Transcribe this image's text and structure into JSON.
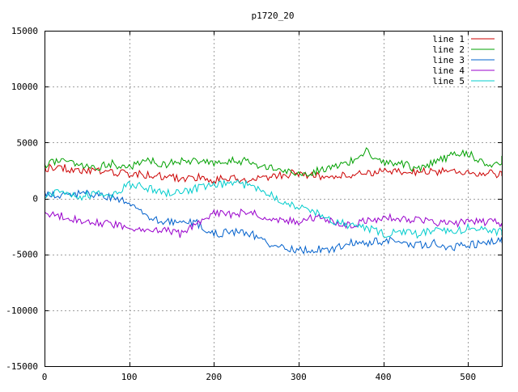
{
  "chart_data": {
    "type": "line",
    "title": "p1720_20",
    "xlabel": "",
    "ylabel": "",
    "xlim": [
      0,
      540
    ],
    "ylim": [
      -15000,
      15000
    ],
    "x_ticks": [
      0,
      100,
      200,
      300,
      400,
      500
    ],
    "y_ticks": [
      -15000,
      -10000,
      -5000,
      0,
      5000,
      10000,
      15000
    ],
    "x_tick_labels": [
      "0",
      "100",
      "200",
      "300",
      "400",
      "500"
    ],
    "y_tick_labels": [
      "-15000",
      "-10000",
      "-5000",
      "0",
      "5000",
      "10000",
      "15000"
    ],
    "grid": true,
    "legend_position": "top-right",
    "x_step": 20,
    "series": [
      {
        "name": "line 1",
        "color": "#cc0000",
        "values": [
          2700,
          2800,
          2500,
          2400,
          2300,
          2200,
          2100,
          2000,
          1800,
          1900,
          1700,
          1800,
          1700,
          1900,
          2100,
          2300,
          2000,
          1900,
          2100,
          2300,
          2400,
          2300,
          2400,
          2400,
          2500,
          2300,
          2200,
          2200,
          2000
        ]
      },
      {
        "name": "line 2",
        "color": "#00a000",
        "values": [
          3000,
          3400,
          3000,
          2800,
          3100,
          2700,
          3600,
          3000,
          3300,
          3400,
          3000,
          3400,
          3300,
          2800,
          2500,
          2200,
          2400,
          2900,
          3200,
          4200,
          3300,
          3200,
          2600,
          3200,
          3800,
          4100,
          3000,
          3200,
          3800
        ]
      },
      {
        "name": "line 3",
        "color": "#0060cc",
        "values": [
          400,
          300,
          400,
          400,
          0,
          -400,
          -1700,
          -2100,
          -2100,
          -2200,
          -3200,
          -3000,
          -3000,
          -3900,
          -4300,
          -4700,
          -4500,
          -4600,
          -4000,
          -4000,
          -3800,
          -3800,
          -4200,
          -4000,
          -4400,
          -4200,
          -4000,
          -3800,
          -4000
        ]
      },
      {
        "name": "line 4",
        "color": "#9900cc",
        "values": [
          -1500,
          -1600,
          -1900,
          -2100,
          -2300,
          -2500,
          -3000,
          -2800,
          -3200,
          -2200,
          -1400,
          -1400,
          -1200,
          -1600,
          -1900,
          -2100,
          -1700,
          -2000,
          -2400,
          -2000,
          -1700,
          -1800,
          -1900,
          -2100,
          -2300,
          -2000,
          -2100,
          -2200,
          -2500
        ]
      },
      {
        "name": "line 5",
        "color": "#00cccc",
        "values": [
          300,
          500,
          100,
          400,
          200,
          1300,
          1000,
          500,
          600,
          900,
          1100,
          1400,
          1200,
          700,
          -200,
          -800,
          -1200,
          -2000,
          -2400,
          -2600,
          -3200,
          -3000,
          -3200,
          -2800,
          -3100,
          -2600,
          -2800,
          -3000,
          -3300
        ]
      }
    ]
  }
}
